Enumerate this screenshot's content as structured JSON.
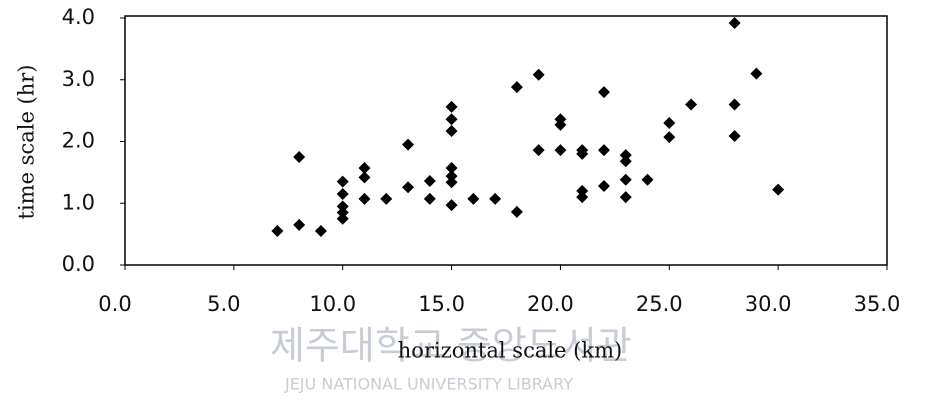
{
  "chart_data": {
    "type": "scatter",
    "xlabel": "horizontal scale (km)",
    "ylabel": "time scale (hr)",
    "watermark": [
      "제주대학교 중앙도서관",
      "JEJU NATIONAL UNIVERSITY LIBRARY"
    ],
    "color": "#000000",
    "xlim": [
      0,
      35
    ],
    "ylim": [
      0,
      4
    ],
    "xticks": [
      {
        "value": 0,
        "label": "0.0"
      },
      {
        "value": 5,
        "label": "5.0"
      },
      {
        "value": 10,
        "label": "10.0"
      },
      {
        "value": 15,
        "label": "15.0"
      },
      {
        "value": 20,
        "label": "20.0"
      },
      {
        "value": 25,
        "label": "25.0"
      },
      {
        "value": 30,
        "label": "30.0"
      },
      {
        "value": 35,
        "label": "35.0"
      }
    ],
    "yticks": [
      {
        "value": 0,
        "label": "0.0"
      },
      {
        "value": 1,
        "label": "1.0"
      },
      {
        "value": 2,
        "label": "2.0"
      },
      {
        "value": 3,
        "label": "3.0"
      },
      {
        "value": 4,
        "label": "4.0"
      }
    ],
    "x": [
      7,
      8,
      8,
      9,
      10,
      10,
      10,
      10,
      10,
      11,
      11,
      11,
      12,
      13,
      13,
      14,
      14,
      15,
      15,
      15,
      15,
      15,
      15,
      15,
      16,
      17,
      18,
      18,
      19,
      19,
      20,
      20,
      20,
      21,
      21,
      21,
      21,
      22,
      22,
      22,
      23,
      23,
      23,
      23,
      24,
      25,
      25,
      26,
      28,
      28,
      28,
      29,
      30
    ],
    "y": [
      0.55,
      0.65,
      1.75,
      0.55,
      1.35,
      1.15,
      0.95,
      0.85,
      0.75,
      1.57,
      1.42,
      1.07,
      1.07,
      1.95,
      1.26,
      1.36,
      1.07,
      2.56,
      2.36,
      2.17,
      1.57,
      1.44,
      1.34,
      0.97,
      1.07,
      1.07,
      2.88,
      0.86,
      3.08,
      1.86,
      2.36,
      2.27,
      1.86,
      1.86,
      1.8,
      1.2,
      1.1,
      2.8,
      1.86,
      1.28,
      1.78,
      1.68,
      1.38,
      1.1,
      1.38,
      2.3,
      2.07,
      2.6,
      3.92,
      2.6,
      2.09,
      3.1,
      1.22
    ]
  }
}
